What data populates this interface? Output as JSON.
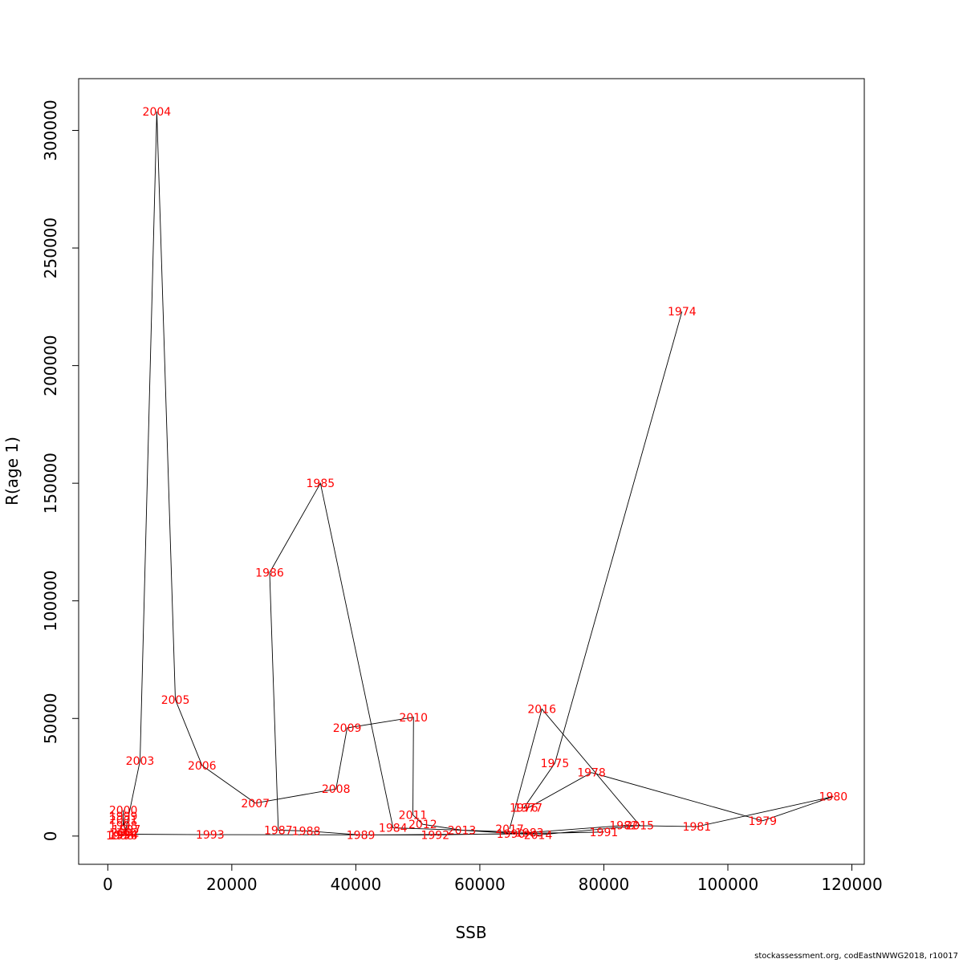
{
  "chart_data": {
    "type": "scatter",
    "connected": true,
    "title": "",
    "xlabel": "SSB",
    "ylabel": "R(age 1)",
    "xlim": [
      -4700,
      122000
    ],
    "ylim": [
      -12000,
      322000
    ],
    "x_ticks": [
      0,
      20000,
      40000,
      60000,
      80000,
      100000,
      120000
    ],
    "y_ticks": [
      0,
      50000,
      100000,
      150000,
      200000,
      250000,
      300000
    ],
    "grid": false,
    "point_label_color": "#ff0000",
    "line_color": "#000000",
    "points": [
      {
        "year": "1974",
        "x": 92600,
        "y": 223000
      },
      {
        "year": "1975",
        "x": 72100,
        "y": 31000
      },
      {
        "year": "1976",
        "x": 67100,
        "y": 12000
      },
      {
        "year": "1977",
        "x": 67800,
        "y": 12000
      },
      {
        "year": "1978",
        "x": 78000,
        "y": 27000
      },
      {
        "year": "1979",
        "x": 105600,
        "y": 6500
      },
      {
        "year": "1980",
        "x": 117000,
        "y": 16800
      },
      {
        "year": "1981",
        "x": 95000,
        "y": 4000
      },
      {
        "year": "1982",
        "x": 83200,
        "y": 4500
      },
      {
        "year": "1983",
        "x": 68000,
        "y": 1500
      },
      {
        "year": "1984",
        "x": 46000,
        "y": 3500
      },
      {
        "year": "1985",
        "x": 34300,
        "y": 150000
      },
      {
        "year": "1986",
        "x": 26100,
        "y": 112000
      },
      {
        "year": "1987",
        "x": 27500,
        "y": 2500
      },
      {
        "year": "1988",
        "x": 32000,
        "y": 2200
      },
      {
        "year": "1989",
        "x": 40800,
        "y": 500
      },
      {
        "year": "1990",
        "x": 65000,
        "y": 900
      },
      {
        "year": "1991",
        "x": 80000,
        "y": 1700
      },
      {
        "year": "1992",
        "x": 52800,
        "y": 500
      },
      {
        "year": "1993",
        "x": 16500,
        "y": 600
      },
      {
        "year": "1994",
        "x": 2500,
        "y": 800
      },
      {
        "year": "1995",
        "x": 2000,
        "y": 300
      },
      {
        "year": "1996",
        "x": 2500,
        "y": 300
      },
      {
        "year": "1997",
        "x": 3000,
        "y": 2800
      },
      {
        "year": "1998",
        "x": 2500,
        "y": 4500
      },
      {
        "year": "1999",
        "x": 2500,
        "y": 8500
      },
      {
        "year": "2000",
        "x": 2500,
        "y": 11000
      },
      {
        "year": "2001",
        "x": 2500,
        "y": 7000
      },
      {
        "year": "2002",
        "x": 2800,
        "y": 1500
      },
      {
        "year": "2003",
        "x": 5200,
        "y": 32000
      },
      {
        "year": "2004",
        "x": 7900,
        "y": 308000
      },
      {
        "year": "2005",
        "x": 10900,
        "y": 58000
      },
      {
        "year": "2006",
        "x": 15200,
        "y": 30000
      },
      {
        "year": "2007",
        "x": 23800,
        "y": 14000
      },
      {
        "year": "2008",
        "x": 36800,
        "y": 20000
      },
      {
        "year": "2009",
        "x": 38600,
        "y": 46000
      },
      {
        "year": "2010",
        "x": 49300,
        "y": 50500
      },
      {
        "year": "2011",
        "x": 49200,
        "y": 9000
      },
      {
        "year": "2012",
        "x": 50800,
        "y": 5000
      },
      {
        "year": "2013",
        "x": 57100,
        "y": 2500
      },
      {
        "year": "2014",
        "x": 69400,
        "y": 500
      },
      {
        "year": "2015",
        "x": 85800,
        "y": 4500
      },
      {
        "year": "2016",
        "x": 70000,
        "y": 54000
      },
      {
        "year": "2017",
        "x": 64800,
        "y": 3000
      }
    ]
  },
  "footer": {
    "credit": "stockassessment.org, codEastNWWG2018, r10017"
  }
}
